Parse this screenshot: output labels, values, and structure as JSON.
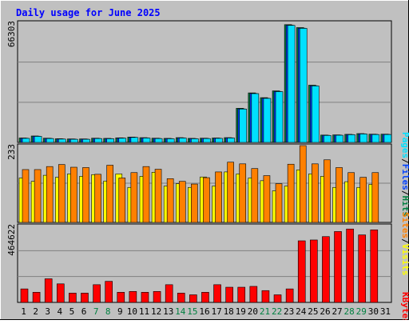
{
  "title": "Daily usage for June 2025",
  "colors": {
    "background": "#c0c0c0",
    "title": "#0000ff",
    "grid": "#808080",
    "hits": "#008040",
    "files": "#0040ff",
    "pages": "#00e0ff",
    "visits": "#ffff00",
    "sites": "#ff8000",
    "kbytes": "#ff0000",
    "weekday": "#000000",
    "weekend": "#008040"
  },
  "chart_data": [
    {
      "type": "bar",
      "panel": "hits-files-pages",
      "y_max_label": "66303",
      "ylim": [
        0,
        66303
      ],
      "legend": [
        "Pages",
        "Files",
        "Hits"
      ],
      "series": [
        {
          "name": "Hits",
          "values": [
            2400,
            3500,
            2300,
            2000,
            1900,
            1900,
            2300,
            2200,
            2500,
            2900,
            2600,
            2300,
            2200,
            2600,
            2200,
            2300,
            2400,
            2600,
            18600,
            27000,
            24400,
            28100,
            64200,
            62600,
            31200,
            4000,
            4100,
            4400,
            4800,
            4500,
            4500
          ]
        },
        {
          "name": "Files",
          "values": [
            2300,
            3400,
            2200,
            1900,
            1800,
            1800,
            2200,
            2100,
            2400,
            2800,
            2500,
            2200,
            2100,
            2500,
            2100,
            2200,
            2300,
            2500,
            18300,
            26700,
            24100,
            27800,
            63900,
            62300,
            30900,
            3900,
            4000,
            4300,
            4700,
            4400,
            4400
          ]
        },
        {
          "name": "Pages",
          "values": [
            2200,
            3300,
            2100,
            1800,
            1700,
            1700,
            2100,
            2000,
            2300,
            2700,
            2400,
            2100,
            2000,
            2400,
            2000,
            2100,
            2200,
            2400,
            18200,
            26600,
            24000,
            27700,
            63800,
            62200,
            30800,
            3800,
            3900,
            4200,
            4600,
            4300,
            4300
          ]
        }
      ],
      "categories": [
        "1",
        "2",
        "3",
        "4",
        "5",
        "6",
        "7",
        "8",
        "9",
        "10",
        "11",
        "12",
        "13",
        "14",
        "15",
        "16",
        "17",
        "18",
        "19",
        "20",
        "21",
        "22",
        "23",
        "24",
        "25",
        "26",
        "27",
        "28",
        "29",
        "30",
        "31"
      ]
    },
    {
      "type": "bar",
      "panel": "visits-sites",
      "y_max_label": "233",
      "ylim": [
        0,
        233
      ],
      "legend": [
        "Sites",
        "Visits"
      ],
      "series": [
        {
          "name": "Visits",
          "values": [
            132,
            122,
            140,
            134,
            144,
            137,
            142,
            123,
            144,
            104,
            137,
            149,
            108,
            115,
            104,
            135,
            108,
            150,
            144,
            132,
            124,
            94,
            108,
            156,
            144,
            137,
            104,
            121,
            104,
            113,
            0
          ]
        },
        {
          "name": "Sites",
          "values": [
            157,
            157,
            166,
            172,
            164,
            163,
            143,
            170,
            132,
            148,
            166,
            158,
            130,
            122,
            114,
            133,
            150,
            179,
            174,
            160,
            139,
            115,
            173,
            235,
            174,
            186,
            163,
            148,
            134,
            148,
            0
          ]
        }
      ],
      "categories": [
        "1",
        "2",
        "3",
        "4",
        "5",
        "6",
        "7",
        "8",
        "9",
        "10",
        "11",
        "12",
        "13",
        "14",
        "15",
        "16",
        "17",
        "18",
        "19",
        "20",
        "21",
        "22",
        "23",
        "24",
        "25",
        "26",
        "27",
        "28",
        "29",
        "30",
        "31"
      ]
    },
    {
      "type": "bar",
      "panel": "kbytes",
      "y_max_label": "464622",
      "ylim": [
        0,
        464622
      ],
      "legend": [
        "KBytes"
      ],
      "series": [
        {
          "name": "KBytes",
          "values": [
            80000,
            60000,
            140000,
            110000,
            55000,
            55000,
            105000,
            125000,
            60000,
            65000,
            60000,
            65000,
            105000,
            55000,
            45000,
            60000,
            105000,
            90000,
            90000,
            95000,
            70000,
            45000,
            80000,
            365000,
            370000,
            390000,
            420000,
            435000,
            400000,
            430000,
            0
          ]
        }
      ],
      "categories": [
        "1",
        "2",
        "3",
        "4",
        "5",
        "6",
        "7",
        "8",
        "9",
        "10",
        "11",
        "12",
        "13",
        "14",
        "15",
        "16",
        "17",
        "18",
        "19",
        "20",
        "21",
        "22",
        "23",
        "24",
        "25",
        "26",
        "27",
        "28",
        "29",
        "30",
        "31"
      ]
    }
  ],
  "x_labels": [
    "1",
    "2",
    "3",
    "4",
    "5",
    "6",
    "7",
    "8",
    "9",
    "10",
    "11",
    "12",
    "13",
    "14",
    "15",
    "16",
    "17",
    "18",
    "19",
    "20",
    "21",
    "22",
    "23",
    "24",
    "25",
    "26",
    "27",
    "28",
    "29",
    "30",
    "31"
  ],
  "weekend_days": [
    "7",
    "8",
    "14",
    "15",
    "21",
    "22",
    "28",
    "29"
  ]
}
